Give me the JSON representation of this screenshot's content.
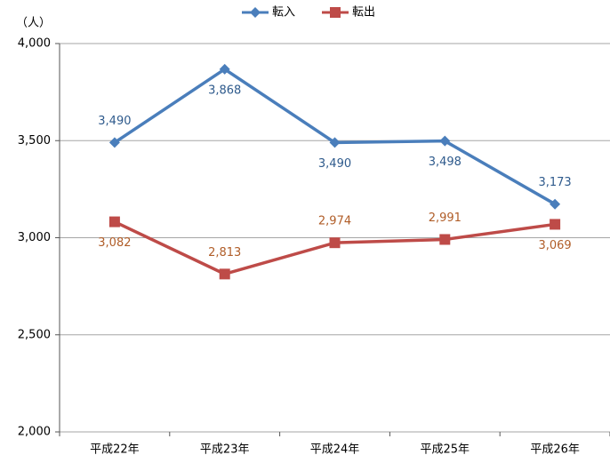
{
  "chart_data": {
    "type": "line",
    "y_axis_label": "（人）",
    "categories": [
      "平成22年",
      "平成23年",
      "平成24年",
      "平成25年",
      "平成26年"
    ],
    "series": [
      {
        "name": "転入",
        "color": "#4a7ebb",
        "marker": "diamond",
        "label_color": "#2e5a8c",
        "values": [
          3490,
          3868,
          3490,
          3498,
          3173
        ],
        "value_labels": [
          "3,490",
          "3,868",
          "3,490",
          "3,498",
          "3,173"
        ]
      },
      {
        "name": "転出",
        "color": "#be4b48",
        "marker": "square",
        "label_color": "#b05d28",
        "values": [
          3082,
          2813,
          2974,
          2991,
          3069
        ],
        "value_labels": [
          "3,082",
          "2,813",
          "2,974",
          "2,991",
          "3,069"
        ]
      }
    ],
    "ylim": [
      2000,
      4000
    ],
    "yticks": [
      {
        "value": 2000,
        "label": "2,000"
      },
      {
        "value": 2500,
        "label": "2,500"
      },
      {
        "value": 3000,
        "label": "3,000"
      },
      {
        "value": 3500,
        "label": "3,500"
      },
      {
        "value": 4000,
        "label": "4,000"
      }
    ],
    "grid": true,
    "legend": "top"
  }
}
